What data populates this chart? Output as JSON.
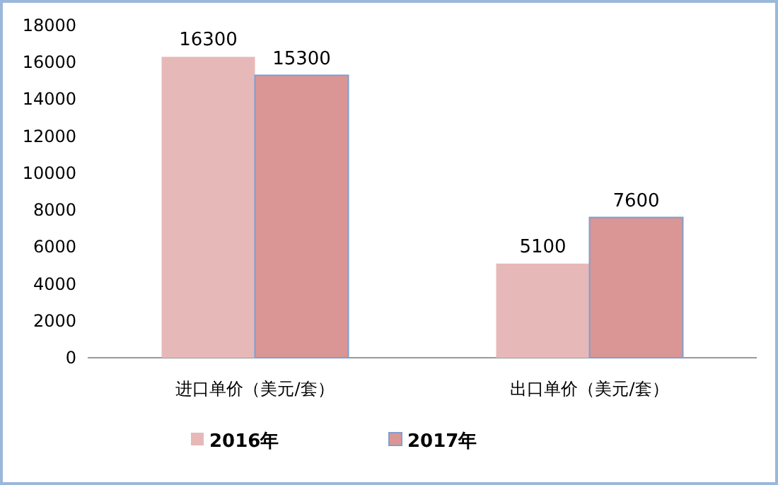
{
  "chart_data": {
    "type": "bar",
    "categories": [
      "进口单价（美元/套）",
      "出口单价（美元/套）"
    ],
    "series": [
      {
        "name": "2016年",
        "color": "#e6b9b8",
        "values": [
          16300,
          5100
        ]
      },
      {
        "name": "2017年",
        "color": "#d99694",
        "values": [
          15300,
          7600
        ]
      }
    ],
    "ylim": [
      0,
      18000
    ],
    "yticks": [
      0,
      2000,
      4000,
      6000,
      8000,
      10000,
      12000,
      14000,
      16000,
      18000
    ],
    "grid": false,
    "legend": "bottom",
    "data_labels": true
  }
}
